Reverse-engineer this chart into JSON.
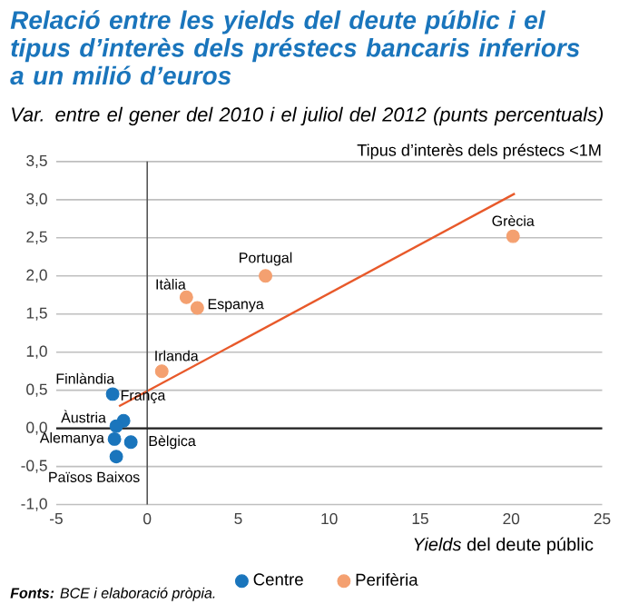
{
  "chart_data": {
    "type": "scatter",
    "title": "Relació entre les yields del deute públic i el tipus d’interès dels préstecs bancaris inferiors a un milió d’euros",
    "subtitle": "Var. entre el gener del 2010 i el juliol del 2012 (punts percentuals)",
    "xlabel": "*Yields* del deute públic",
    "ylabel": "Tipus d’interès dels préstecs <1M",
    "xlim": [
      -5,
      25
    ],
    "xticks": [
      -5,
      0,
      5,
      10,
      15,
      20,
      25
    ],
    "ylim": [
      -1.0,
      3.5
    ],
    "yticks": [
      {
        "value": -1.0,
        "label": "-1,0"
      },
      {
        "value": -0.5,
        "label": "-0,5"
      },
      {
        "value": 0,
        "label": "0,0"
      },
      {
        "value": 0.5,
        "label": "0,5"
      },
      {
        "value": 1.0,
        "label": "1,0"
      },
      {
        "value": 1.5,
        "label": "1,5"
      },
      {
        "value": 2.0,
        "label": "2,0"
      },
      {
        "value": 2.5,
        "label": "2,5"
      },
      {
        "value": 3.0,
        "label": "3,0"
      },
      {
        "value": 3.5,
        "label": "3,5"
      }
    ],
    "grid": "y",
    "legend": "bottom",
    "ref_lines": [
      {
        "axis": "x",
        "value": 0,
        "color": "#555555"
      },
      {
        "axis": "y",
        "value": 0,
        "color": "#222222"
      }
    ],
    "series": [
      {
        "name": "Centre",
        "marker": "circle",
        "color": "#1a75bc",
        "x": [
          -1.9,
          -1.3,
          -1.7,
          -1.8,
          -0.9,
          -1.7
        ],
        "values": [
          0.45,
          0.1,
          0.03,
          -0.14,
          -0.18,
          -0.37
        ]
      },
      {
        "name": "Perifèria",
        "marker": "circle",
        "color": "#f4a070",
        "x": [
          20.1,
          6.5,
          2.15,
          2.75,
          0.8
        ],
        "values": [
          2.52,
          2.0,
          1.72,
          1.58,
          0.75
        ]
      },
      {
        "type": "line",
        "marker": "none",
        "color": "#e8592a",
        "x": [
          -1.55,
          20.2
        ],
        "values": [
          0.29,
          3.08
        ]
      }
    ],
    "annotations": [
      {
        "text": "Grècia",
        "x": 20.1,
        "y": 2.52
      },
      {
        "text": "Portugal",
        "x": 6.5,
        "y": 2.0
      },
      {
        "text": "Itàlia",
        "x": 2.15,
        "y": 1.72
      },
      {
        "text": "Espanya",
        "x": 2.75,
        "y": 1.58
      },
      {
        "text": "Irlanda",
        "x": 0.8,
        "y": 0.75
      },
      {
        "text": "Finlàndia",
        "x": -1.9,
        "y": 0.45
      },
      {
        "text": "França",
        "x": -1.3,
        "y": 0.1
      },
      {
        "text": "Àustria",
        "x": -1.7,
        "y": 0.03
      },
      {
        "text": "Alemanya",
        "x": -1.8,
        "y": -0.14
      },
      {
        "text": "Bèlgica",
        "x": -0.9,
        "y": -0.18
      },
      {
        "text": "Països Baixos",
        "x": -1.7,
        "y": -0.37
      },
      "**Fonts:** BCE i elaboració pròpia."
    ]
  }
}
